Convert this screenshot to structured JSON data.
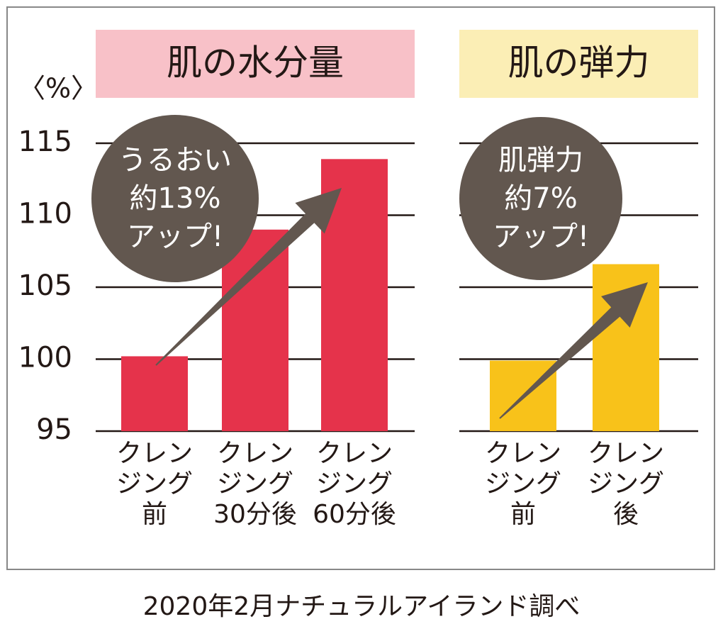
{
  "chart_data": [
    {
      "type": "bar",
      "title": "肌の水分量",
      "y_label": "〈%〉",
      "categories": [
        "クレン\nジング\n前",
        "クレン\nジング\n30分後",
        "クレン\nジング\n60分後"
      ],
      "values": [
        100.2,
        109.0,
        113.9
      ],
      "color": "#e5334b",
      "title_color": "#f8c1c8",
      "ylim": [
        95,
        115
      ],
      "yticks": [
        95,
        100,
        105,
        110,
        115
      ],
      "tick_labels": true,
      "grid": true,
      "annotation": "うるおい\n約13%\nアップ!"
    },
    {
      "type": "bar",
      "title": "肌の弾力",
      "categories": [
        "クレン\nジング\n前",
        "クレン\nジング\n後"
      ],
      "values": [
        99.9,
        106.6
      ],
      "color": "#f8c21a",
      "title_color": "#fbeeb5",
      "ylim": [
        95,
        115
      ],
      "yticks": [
        95,
        100,
        105,
        110,
        115
      ],
      "tick_labels": false,
      "grid": true,
      "annotation": "肌弾力\n約7%\nアップ!"
    }
  ],
  "source": "2020年2月ナチュラルアイランド調べ"
}
